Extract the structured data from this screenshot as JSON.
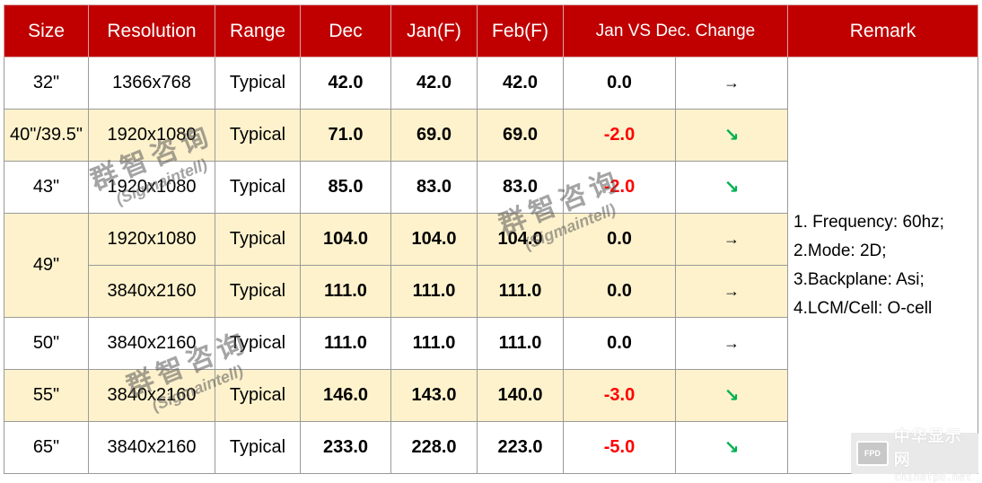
{
  "table": {
    "headers": [
      "Size",
      "Resolution",
      "Range",
      "Dec",
      "Jan(F)",
      "Feb(F)",
      "Jan VS  Dec. Change",
      "Remark"
    ],
    "rows": [
      {
        "size": "32\"",
        "resolution": "1366x768",
        "range": "Typical",
        "dec": "42.0",
        "jan": "42.0",
        "feb": "42.0",
        "change": "0.0",
        "trend": "→",
        "trend_icon": "arrow-right-icon"
      },
      {
        "size": "40\"/39.5\"",
        "resolution": "1920x1080",
        "range": "Typical",
        "dec": "71.0",
        "jan": "69.0",
        "feb": "69.0",
        "change": "-2.0",
        "trend": "↘",
        "trend_icon": "arrow-down-right-icon"
      },
      {
        "size": "43\"",
        "resolution": "1920x1080",
        "range": "Typical",
        "dec": "85.0",
        "jan": "83.0",
        "feb": "83.0",
        "change": "-2.0",
        "trend": "↘",
        "trend_icon": "arrow-down-right-icon"
      },
      {
        "size": "49\"",
        "resolution": "1920x1080",
        "range": "Typical",
        "dec": "104.0",
        "jan": "104.0",
        "feb": "104.0",
        "change": "0.0",
        "trend": "→",
        "trend_icon": "arrow-right-icon"
      },
      {
        "size": "",
        "resolution": "3840x2160",
        "range": "Typical",
        "dec": "111.0",
        "jan": "111.0",
        "feb": "111.0",
        "change": "0.0",
        "trend": "→",
        "trend_icon": "arrow-right-icon"
      },
      {
        "size": "50\"",
        "resolution": "3840x2160",
        "range": "Typical",
        "dec": "111.0",
        "jan": "111.0",
        "feb": "111.0",
        "change": "0.0",
        "trend": "→",
        "trend_icon": "arrow-right-icon"
      },
      {
        "size": "55\"",
        "resolution": "3840x2160",
        "range": "Typical",
        "dec": "146.0",
        "jan": "143.0",
        "feb": "140.0",
        "change": "-3.0",
        "trend": "↘",
        "trend_icon": "arrow-down-right-icon"
      },
      {
        "size": "65\"",
        "resolution": "3840x2160",
        "range": "Typical",
        "dec": "233.0",
        "jan": "228.0",
        "feb": "223.0",
        "change": "-5.0",
        "trend": "↘",
        "trend_icon": "arrow-down-right-icon"
      }
    ],
    "remark": [
      "1. Frequency: 60hz;",
      "2.Mode: 2D;",
      "3.Backplane: Asi;",
      "4.LCM/Cell: O-cell"
    ]
  },
  "colors": {
    "header_bg": "#c00000",
    "header_text": "#ffffff",
    "shade_row": "#fef2cc",
    "negative": "#ff0000",
    "down_arrow": "#00b050"
  },
  "watermark": {
    "cn": "群智咨询",
    "en": "(Sigmaintell)"
  },
  "logo": {
    "mark": "FPD",
    "cn": "中华显示网",
    "url": "chinafpd.net"
  }
}
